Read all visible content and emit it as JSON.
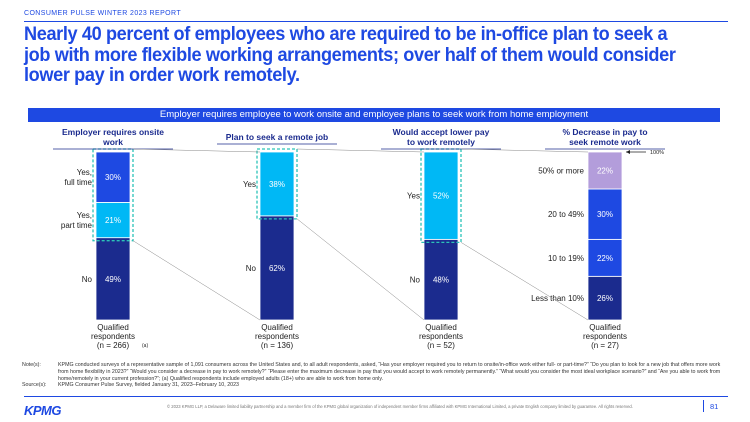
{
  "header": {
    "report_label": "CONSUMER PULSE WINTER 2023 REPORT"
  },
  "title": "Nearly 40 percent of employees who are required to be in-office plan to seek a job with more flexible working arrangements; over half of them would consider lower pay in order work remotely.",
  "banner": "Employer requires employee to work onsite and employee plans to seek work from home employment",
  "colors": {
    "navy": "#1B2B8E",
    "blue": "#1E49E2",
    "light_blue": "#00B8F5",
    "lavender": "#B39DDB",
    "dash": "#2BC3B8"
  },
  "chart_data": [
    {
      "type": "bar",
      "title": "Employer requires onsite work",
      "segments": [
        {
          "name": "No",
          "value": 49,
          "label": "49%"
        },
        {
          "name": "Yes, part time",
          "value": 21,
          "label": "21%"
        },
        {
          "name": "Yes, full time",
          "value": 30,
          "label": "30%"
        }
      ],
      "footnote": "Qualified respondents (n = 266)",
      "footnote_sup": "(a)"
    },
    {
      "type": "bar",
      "title": "Plan to seek a remote job",
      "segments": [
        {
          "name": "No",
          "value": 62,
          "label": "62%"
        },
        {
          "name": "Yes",
          "value": 38,
          "label": "38%"
        }
      ],
      "footnote": "Qualified respondents (n = 136)"
    },
    {
      "type": "bar",
      "title": "Would accept lower pay to work remotely",
      "segments": [
        {
          "name": "No",
          "value": 48,
          "label": "48%"
        },
        {
          "name": "Yes",
          "value": 52,
          "label": "52%"
        }
      ],
      "footnote": "Qualified respondents (n = 52)"
    },
    {
      "type": "bar",
      "title": "% Decrease in pay to seek remote work",
      "total_label": "100%",
      "segments": [
        {
          "name": "Less than 10%",
          "value": 26,
          "label": "26%"
        },
        {
          "name": "10 to 19%",
          "value": 22,
          "label": "22%"
        },
        {
          "name": "20 to 49%",
          "value": 30,
          "label": "30%"
        },
        {
          "name": "50% or more",
          "value": 22,
          "label": "22%"
        }
      ],
      "footnote": "Qualified respondents (n = 27)"
    }
  ],
  "notes": {
    "notes_label": "Note(s):",
    "notes_text": "KPMG conducted surveys of a representative sample of 1,091 consumers across the United States and, to all adult respondents, asked, “Has your employer required you to return to onsite/in-office work either full- or part-time?” “Do you plan to look for a new job that offers more work from home flexibility in 2023?” “Would you consider a decrease in pay to work remotely?” “Please enter the maximum decrease in pay that you would accept to work remotely permanently.” “What would you consider the most ideal workplace scenario?” and “Are you able to work from home/remotely in your current profession?”; (a) Qualified respondents include employed adults (18+) who are able to work from home only.",
    "sources_label": "Source(s):",
    "sources_text": "KPMG Consumer Pulse Survey, fielded January 31, 2023–February 10, 2023"
  },
  "footer": {
    "logo": "KPMG",
    "copyright": "© 2023 KPMG LLP, a Delaware limited liability partnership and a member firm of the KPMG global organization of independent member firms affiliated with KPMG International Limited, a private English company limited by guarantee. All rights reserved.",
    "page_number": "81"
  }
}
